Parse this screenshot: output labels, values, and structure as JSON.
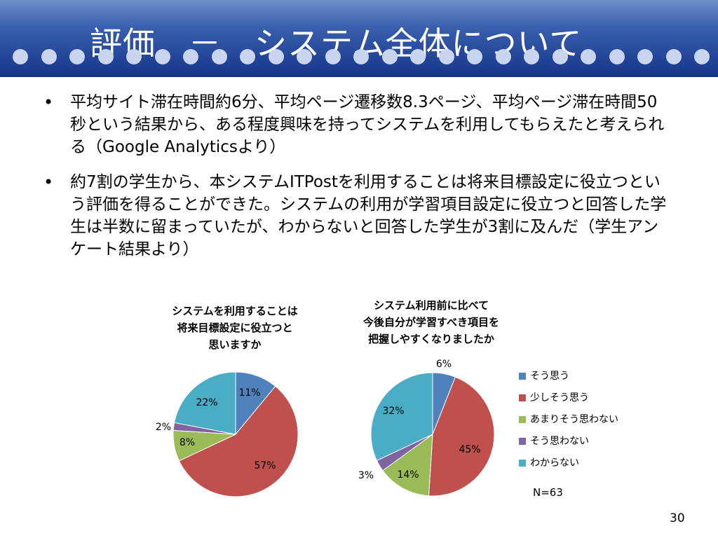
{
  "slide": {
    "title": "評価　－　システム全体について",
    "page_number": "30"
  },
  "bullets": [
    "平均サイト滞在時間約6分、平均ページ遷移数8.3ページ、平均ページ滞在時間50秒という結果から、ある程度興味を持ってシステムを利用してもらえたと考えられる（Google Analyticsより）",
    "約7割の学生から、本システムITPostを利用することは将来目標設定に役立つという評価を得ることができた。システムの利用が学習項目設定に役立つと回答した学生は半数に留まっていたが、わからないと回答した学生が3割に及んだ（学生アンケート結果より）"
  ],
  "chart_data": [
    {
      "type": "pie",
      "title": "システムを利用することは将来目標設定に役立つと思いますか",
      "title_lines": [
        "システムを利用することは",
        "将来目標設定に役立つと",
        "思いますか"
      ],
      "categories": [
        "そう思う",
        "少しそう思う",
        "あまりそう思わない",
        "そう思わない",
        "わからない"
      ],
      "values": [
        11,
        57,
        8,
        2,
        22
      ],
      "labels": [
        "11%",
        "57%",
        "8%",
        "2%",
        "22%"
      ],
      "colors": [
        "#4f81bd",
        "#c0504d",
        "#9bbb59",
        "#8064a2",
        "#4bacc6"
      ]
    },
    {
      "type": "pie",
      "title": "システム利用前に比べて今後自分が学習すべき項目を把握しやすくなりましたか",
      "title_lines": [
        "システム利用前に比べて",
        "今後自分が学習すべき項目を",
        "把握しやすくなりましたか"
      ],
      "categories": [
        "そう思う",
        "少しそう思う",
        "あまりそう思わない",
        "そう思わない",
        "わからない"
      ],
      "values": [
        6,
        45,
        14,
        3,
        32
      ],
      "labels": [
        "6%",
        "45%",
        "14%",
        "3%",
        "32%"
      ],
      "colors": [
        "#4f81bd",
        "#c0504d",
        "#9bbb59",
        "#8064a2",
        "#4bacc6"
      ]
    }
  ],
  "legend": [
    {
      "label": "そう思う",
      "color": "#4f81bd"
    },
    {
      "label": "少しそう思う",
      "color": "#c0504d"
    },
    {
      "label": "あまりそう思わない",
      "color": "#9bbb59"
    },
    {
      "label": "そう思わない",
      "color": "#8064a2"
    },
    {
      "label": "わからない",
      "color": "#4bacc6"
    }
  ],
  "sample_size": "N=63"
}
